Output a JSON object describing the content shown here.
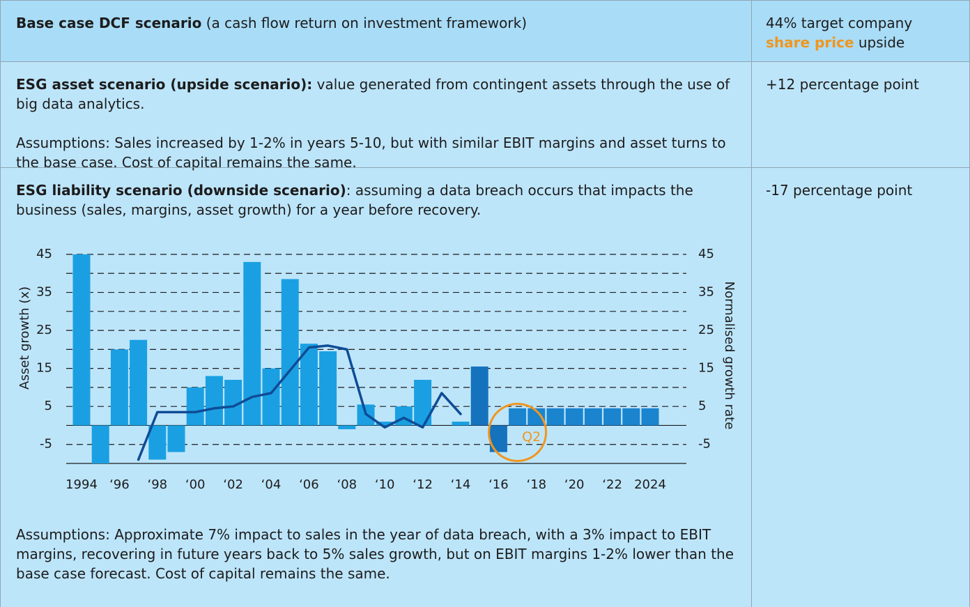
{
  "table": {
    "rows": [
      {
        "heading": "Base case DCF scenario",
        "text": "(a cash flow return on investment framework)",
        "impact": {
          "before": "44% target company",
          "highlight": "share price",
          "after": "upside"
        }
      },
      {
        "heading": "ESG asset scenario (upside scenario):",
        "text": "value generated from contingent assets through the use of big data analytics.",
        "assumptions": "Assumptions: Sales increased by 1-2% in years 5-10, but with similar EBIT margins and asset turns to the base case. Cost of capital remains the same.",
        "impact": "+12 percentage point"
      },
      {
        "heading": "ESG liability scenario (downside scenario)",
        "text": ": assuming a data breach occurs that impacts the business (sales, margins, asset growth) for a year before recovery.",
        "assumptions": "Assumptions: Approximate 7% impact to sales in the year of data breach, with a 3% impact to EBIT margins, recovering in future years back to 5% sales growth, but on EBIT margins 1-2% lower than the base case forecast. Cost of capital remains the same.",
        "impact": "-17 percentage point"
      }
    ]
  },
  "chart_data": {
    "type": "bar",
    "categories": [
      "1994",
      null,
      "‘96",
      null,
      "‘98",
      null,
      "‘00",
      null,
      "‘02",
      null,
      "‘04",
      null,
      "‘06",
      null,
      "‘08",
      null,
      "‘10",
      null,
      "‘12",
      null,
      "‘14",
      null,
      "‘16",
      null,
      "‘18",
      null,
      "‘20",
      null,
      "‘22",
      null,
      "2024"
    ],
    "series": [
      {
        "type": "bar",
        "values": [
          45,
          -10,
          20,
          22.5,
          -9,
          -7,
          10,
          13,
          12,
          43,
          15,
          38.5,
          21.5,
          19.5,
          -1,
          5.5,
          1,
          5,
          12,
          null,
          1,
          15.5,
          -7,
          4.5,
          4.5,
          4.5,
          4.5,
          4.5,
          4.5,
          4.5,
          4.5
        ],
        "colors": [
          "#1aa0e2",
          "#1aa0e2",
          "#1aa0e2",
          "#1aa0e2",
          "#1aa0e2",
          "#1aa0e2",
          "#1aa0e2",
          "#1aa0e2",
          "#1aa0e2",
          "#1aa0e2",
          "#1aa0e2",
          "#1aa0e2",
          "#1aa0e2",
          "#1aa0e2",
          "#1aa0e2",
          "#1aa0e2",
          "#1aa0e2",
          "#1aa0e2",
          "#1aa0e2",
          "#1aa0e2",
          "#1aa0e2",
          "#1572bd",
          "#1572bd",
          "#1a84cf",
          "#1a84cf",
          "#1a84cf",
          "#1a84cf",
          "#1a84cf",
          "#1a84cf",
          "#1a84cf",
          "#1a84cf"
        ]
      },
      {
        "type": "line",
        "axis": "y2",
        "color": "#0f4c96",
        "values": [
          null,
          null,
          null,
          -9,
          3.5,
          3.5,
          3.5,
          4.5,
          5,
          7.5,
          8.5,
          14.5,
          20.5,
          21,
          20,
          3,
          -0.5,
          2,
          -0.5,
          8.5,
          3,
          null,
          null,
          null,
          null,
          null,
          null,
          null,
          null,
          null,
          null
        ]
      }
    ],
    "ylabel": "Asset growth (x)",
    "y2label": "Normalised growth rate",
    "ylim": [
      -10,
      45
    ],
    "yticks": [
      -5,
      5,
      15,
      25,
      35,
      45
    ],
    "minor_yticks": [
      0,
      10,
      20,
      30,
      40
    ],
    "y2lim": [
      -10,
      45
    ],
    "y2ticks": [
      -5,
      5,
      15,
      25,
      35,
      45
    ],
    "grid": true,
    "annotations": [
      {
        "text": "Q2",
        "category": 23,
        "color": "#f0961e"
      }
    ]
  }
}
